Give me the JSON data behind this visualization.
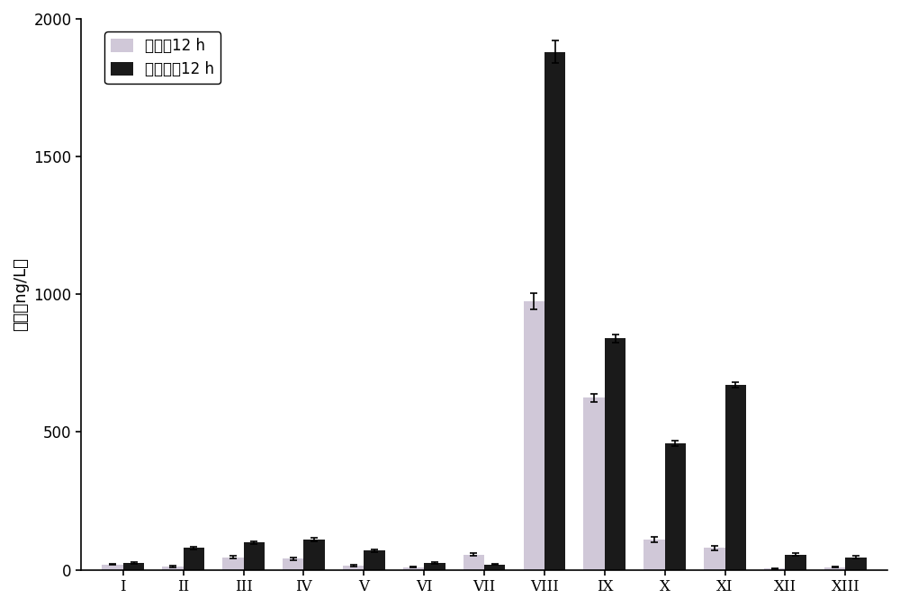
{
  "categories": [
    "I",
    "II",
    "III",
    "IV",
    "V",
    "VI",
    "VII",
    "VIII",
    "IX",
    "X",
    "XI",
    "XII",
    "XIII"
  ],
  "chlorine_values": [
    20,
    12,
    45,
    40,
    15,
    10,
    55,
    975,
    625,
    110,
    80,
    5,
    10
  ],
  "chloramine_values": [
    25,
    80,
    100,
    110,
    70,
    25,
    20,
    1880,
    840,
    460,
    670,
    55,
    45
  ],
  "chlorine_errors": [
    3,
    2,
    5,
    5,
    3,
    2,
    5,
    30,
    15,
    10,
    8,
    2,
    2
  ],
  "chloramine_errors": [
    2,
    5,
    5,
    8,
    5,
    2,
    2,
    40,
    15,
    10,
    10,
    5,
    5
  ],
  "chlorine_color": "#d0c8d8",
  "chloramine_color": "#1a1a1a",
  "ylabel_cn": "浓度（ng/L）",
  "legend_chlorine": "氯消毕12 h",
  "legend_chloramine": "氯胺消毕12 h",
  "ylim": [
    0,
    2000
  ],
  "yticks": [
    0,
    500,
    1000,
    1500,
    2000
  ],
  "bar_width": 0.35,
  "figure_width": 10.0,
  "figure_height": 6.75,
  "dpi": 100,
  "background_color": "#ffffff",
  "axis_fontsize": 13,
  "legend_fontsize": 12,
  "tick_fontsize": 12
}
